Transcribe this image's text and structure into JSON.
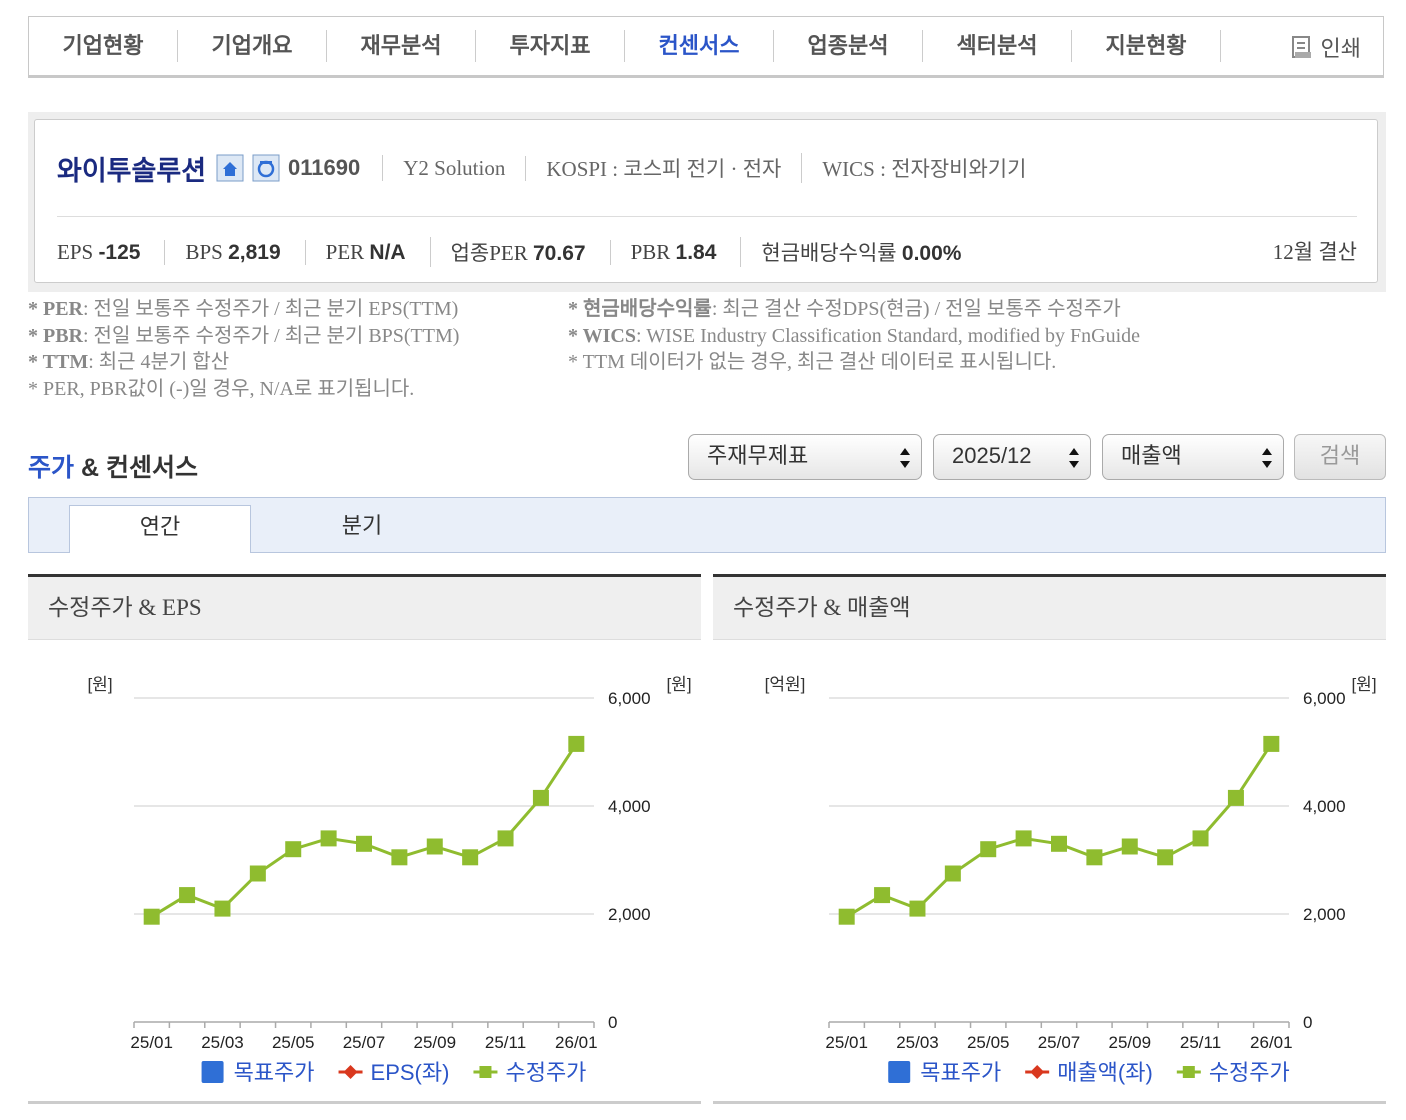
{
  "nav": {
    "tabs": [
      "기업현황",
      "기업개요",
      "재무분석",
      "투자지표",
      "컨센서스",
      "업종분석",
      "섹터분석",
      "지분현황"
    ],
    "active": 4,
    "print": "인쇄"
  },
  "company": {
    "name": "와이투솔루션",
    "code": "011690",
    "english_name": "Y2 Solution",
    "market": "KOSPI : 코스피 전기 · 전자",
    "wics": "WICS : 전자장비와기기",
    "metrics": [
      {
        "label": "EPS",
        "value": "-125"
      },
      {
        "label": "BPS",
        "value": "2,819"
      },
      {
        "label": "PER",
        "value": "N/A"
      },
      {
        "label": "업종PER",
        "value": "70.67"
      },
      {
        "label": "PBR",
        "value": "1.84"
      },
      {
        "label": "현금배당수익률",
        "value": "0.00%"
      }
    ],
    "fiscal": "12월 결산"
  },
  "notes": {
    "left": [
      {
        "term": "* PER",
        "text": ": 전일 보통주 수정주가 / 최근 분기 EPS(TTM)"
      },
      {
        "term": "* PBR",
        "text": ": 전일 보통주 수정주가 / 최근 분기 BPS(TTM)"
      },
      {
        "term": "* TTM",
        "text": ": 최근 4분기 합산"
      },
      {
        "text": "* PER, PBR값이 (-)일 경우, N/A로 표기됩니다."
      }
    ],
    "right": [
      {
        "term": "* 현금배당수익률",
        "text": ": 최근 결산 수정DPS(현금) / 전일 보통주 수정주가"
      },
      {
        "term": "* WICS",
        "text": ": WISE Industry Classification Standard, modified by FnGuide"
      },
      {
        "text": "* TTM 데이터가 없는 경우, 최근 결산 데이터로 표시됩니다."
      }
    ]
  },
  "section": {
    "title_highlight": "주가",
    "title_rest": "& 컨센서스",
    "selects": [
      "주재무제표",
      "2025/12",
      "매출액"
    ],
    "button": "검색",
    "tabs": [
      "연간",
      "분기"
    ],
    "active_tab": 0
  },
  "chart_data": [
    {
      "type": "line",
      "title": "수정주가 & EPS",
      "y_label": "[원]",
      "y2_label": "[원]",
      "categories": [
        "25/01",
        null,
        "25/03",
        null,
        "25/05",
        null,
        "25/07",
        null,
        "25/09",
        null,
        "25/11",
        null,
        "26/01"
      ],
      "series": [
        {
          "name": "목표주가",
          "color": "#2f6fd6",
          "values": [
            null,
            null,
            null,
            null,
            null,
            null,
            null,
            null,
            null,
            null,
            null,
            null,
            null
          ]
        },
        {
          "name": "EPS(좌)",
          "color": "#d9381e",
          "values": [
            null,
            null,
            null,
            null,
            null,
            null,
            null,
            null,
            null,
            null,
            null,
            null,
            null
          ]
        },
        {
          "name": "수정주가",
          "color": "#8fbc2f",
          "axis": "y2",
          "values": [
            1950,
            2350,
            2100,
            2750,
            3200,
            3400,
            3300,
            3050,
            3250,
            3050,
            3400,
            4150,
            5150
          ]
        }
      ],
      "y2lim": [
        0,
        6000
      ],
      "y2ticks": [
        0,
        {
          "value": 2000,
          "label": "2,000"
        },
        {
          "value": 4000,
          "label": "4,000"
        },
        {
          "value": 6000,
          "label": "6,000"
        }
      ],
      "grid": true
    },
    {
      "type": "line",
      "title": "수정주가 & 매출액",
      "y_label": "[억원]",
      "y2_label": "[원]",
      "categories": [
        "25/01",
        null,
        "25/03",
        null,
        "25/05",
        null,
        "25/07",
        null,
        "25/09",
        null,
        "25/11",
        null,
        "26/01"
      ],
      "series": [
        {
          "name": "목표주가",
          "color": "#2f6fd6",
          "values": [
            null,
            null,
            null,
            null,
            null,
            null,
            null,
            null,
            null,
            null,
            null,
            null,
            null
          ]
        },
        {
          "name": "매출액(좌)",
          "color": "#d9381e",
          "values": [
            null,
            null,
            null,
            null,
            null,
            null,
            null,
            null,
            null,
            null,
            null,
            null,
            null
          ]
        },
        {
          "name": "수정주가",
          "color": "#8fbc2f",
          "axis": "y2",
          "values": [
            1950,
            2350,
            2100,
            2750,
            3200,
            3400,
            3300,
            3050,
            3250,
            3050,
            3400,
            4150,
            5150
          ]
        }
      ],
      "y2lim": [
        0,
        6000
      ],
      "y2ticks": [
        0,
        {
          "value": 2000,
          "label": "2,000"
        },
        {
          "value": 4000,
          "label": "4,000"
        },
        {
          "value": 6000,
          "label": "6,000"
        }
      ],
      "grid": true
    }
  ]
}
